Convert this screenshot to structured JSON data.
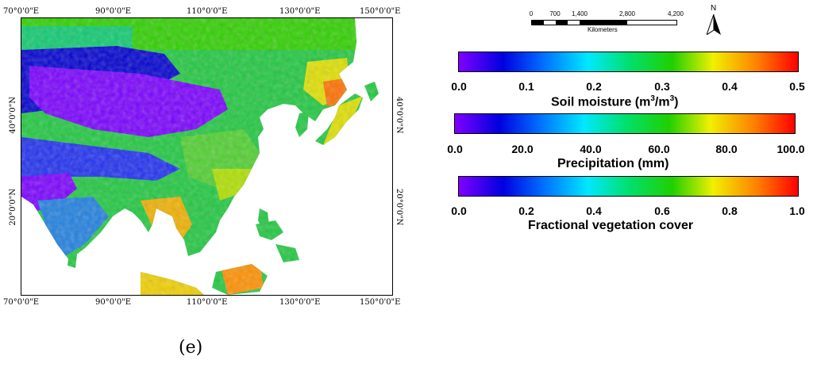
{
  "panel_label": "(e)",
  "map": {
    "lon_labels_top": [
      "70°0'0\"E",
      "90°0'0\"E",
      "110°0'0\"E",
      "130°0'0\"E",
      "150°0'0\"E"
    ],
    "lon_labels_bottom": [
      "70°0'0\"E",
      "90°0'0\"E",
      "110°0'0\"E",
      "130°0'0\"E",
      "150°0'0\"E"
    ],
    "lat_labels_left": [
      "40°0'0\"N",
      "20°0'0\"N"
    ],
    "lat_labels_right": [
      "40°0'0\"N",
      "20°0'0\"N"
    ]
  },
  "scale_bar": {
    "ticks": [
      "0",
      "700",
      "1,400",
      "2,800",
      "4,200"
    ],
    "unit": "Kilometers"
  },
  "north_arrow": {
    "letter": "N"
  },
  "colorbars": [
    {
      "ticks": [
        "0.0",
        "0.1",
        "0.2",
        "0.3",
        "0.4",
        "0.5"
      ],
      "title_main": "Soil moisture (m",
      "title_sup1": "3",
      "title_mid": "/m",
      "title_sup2": "3",
      "title_end": ")"
    },
    {
      "ticks": [
        "0.0",
        "20.0",
        "40.0",
        "60.0",
        "80.0",
        "100.0"
      ],
      "title": "Precipitation (mm)"
    },
    {
      "ticks": [
        "0.0",
        "0.2",
        "0.4",
        "0.6",
        "0.8",
        "1.0"
      ],
      "title": "Fractional vegetation cover"
    }
  ],
  "colors": {
    "ramp": [
      "#8000ff",
      "#0000e0",
      "#0070ff",
      "#00e8ff",
      "#00e070",
      "#20d000",
      "#f0f000",
      "#ff8000",
      "#ff0000"
    ]
  }
}
